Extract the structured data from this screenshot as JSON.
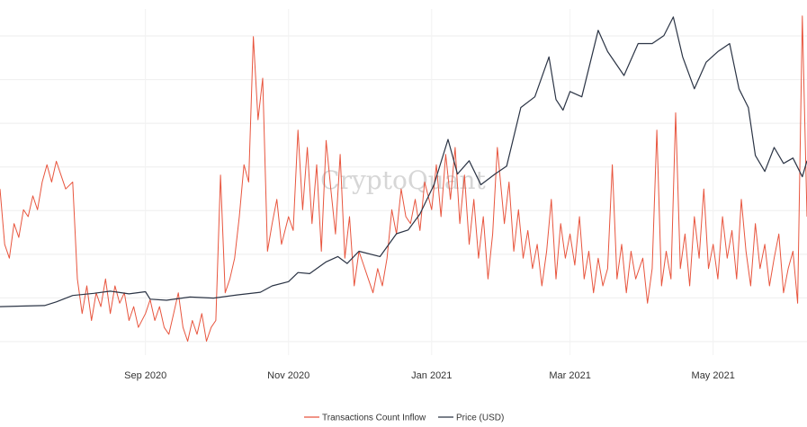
{
  "watermark": "CryptoQuant",
  "chart_data": {
    "type": "line",
    "x_type": "date",
    "xlim": [
      "2020-07-01",
      "2021-06-10"
    ],
    "x_ticks": [
      {
        "date": "2020-09-01",
        "label": "Sep 2020"
      },
      {
        "date": "2020-11-01",
        "label": "Nov 2020"
      },
      {
        "date": "2021-01-01",
        "label": "Jan 2021"
      },
      {
        "date": "2021-03-01",
        "label": "Mar 2021"
      },
      {
        "date": "2021-05-01",
        "label": "May 2021"
      }
    ],
    "grid": true,
    "legend_position": "bottom-center",
    "series": [
      {
        "name": "Transactions Count Inflow",
        "color": "#e8553e",
        "axis": "left",
        "ylim": [
          0,
          100
        ],
        "points": [
          [
            "2020-07-01",
            48
          ],
          [
            "2020-07-03",
            32
          ],
          [
            "2020-07-05",
            28
          ],
          [
            "2020-07-07",
            38
          ],
          [
            "2020-07-09",
            34
          ],
          [
            "2020-07-11",
            42
          ],
          [
            "2020-07-13",
            40
          ],
          [
            "2020-07-15",
            46
          ],
          [
            "2020-07-17",
            42
          ],
          [
            "2020-07-19",
            50
          ],
          [
            "2020-07-21",
            55
          ],
          [
            "2020-07-23",
            50
          ],
          [
            "2020-07-25",
            56
          ],
          [
            "2020-07-27",
            52
          ],
          [
            "2020-07-29",
            48
          ],
          [
            "2020-08-01",
            50
          ],
          [
            "2020-08-03",
            22
          ],
          [
            "2020-08-05",
            12
          ],
          [
            "2020-08-07",
            20
          ],
          [
            "2020-08-09",
            10
          ],
          [
            "2020-08-11",
            18
          ],
          [
            "2020-08-13",
            14
          ],
          [
            "2020-08-15",
            22
          ],
          [
            "2020-08-17",
            12
          ],
          [
            "2020-08-19",
            20
          ],
          [
            "2020-08-21",
            15
          ],
          [
            "2020-08-23",
            18
          ],
          [
            "2020-08-25",
            10
          ],
          [
            "2020-08-27",
            14
          ],
          [
            "2020-08-29",
            8
          ],
          [
            "2020-09-01",
            12
          ],
          [
            "2020-09-03",
            16
          ],
          [
            "2020-09-05",
            10
          ],
          [
            "2020-09-07",
            14
          ],
          [
            "2020-09-09",
            8
          ],
          [
            "2020-09-11",
            6
          ],
          [
            "2020-09-13",
            12
          ],
          [
            "2020-09-15",
            18
          ],
          [
            "2020-09-17",
            8
          ],
          [
            "2020-09-19",
            4
          ],
          [
            "2020-09-21",
            10
          ],
          [
            "2020-09-23",
            6
          ],
          [
            "2020-09-25",
            12
          ],
          [
            "2020-09-27",
            4
          ],
          [
            "2020-09-29",
            8
          ],
          [
            "2020-10-01",
            10
          ],
          [
            "2020-10-03",
            52
          ],
          [
            "2020-10-05",
            18
          ],
          [
            "2020-10-07",
            22
          ],
          [
            "2020-10-09",
            28
          ],
          [
            "2020-10-11",
            40
          ],
          [
            "2020-10-13",
            55
          ],
          [
            "2020-10-15",
            50
          ],
          [
            "2020-10-17",
            92
          ],
          [
            "2020-10-19",
            68
          ],
          [
            "2020-10-21",
            80
          ],
          [
            "2020-10-23",
            30
          ],
          [
            "2020-10-25",
            38
          ],
          [
            "2020-10-27",
            45
          ],
          [
            "2020-10-29",
            32
          ],
          [
            "2020-11-01",
            40
          ],
          [
            "2020-11-03",
            36
          ],
          [
            "2020-11-05",
            65
          ],
          [
            "2020-11-07",
            42
          ],
          [
            "2020-11-09",
            60
          ],
          [
            "2020-11-11",
            38
          ],
          [
            "2020-11-13",
            55
          ],
          [
            "2020-11-15",
            30
          ],
          [
            "2020-11-17",
            62
          ],
          [
            "2020-11-19",
            48
          ],
          [
            "2020-11-21",
            35
          ],
          [
            "2020-11-23",
            58
          ],
          [
            "2020-11-25",
            28
          ],
          [
            "2020-11-27",
            40
          ],
          [
            "2020-11-29",
            20
          ],
          [
            "2020-12-01",
            30
          ],
          [
            "2020-12-03",
            26
          ],
          [
            "2020-12-05",
            22
          ],
          [
            "2020-12-07",
            18
          ],
          [
            "2020-12-09",
            25
          ],
          [
            "2020-12-11",
            20
          ],
          [
            "2020-12-13",
            28
          ],
          [
            "2020-12-15",
            42
          ],
          [
            "2020-12-17",
            35
          ],
          [
            "2020-12-19",
            48
          ],
          [
            "2020-12-21",
            40
          ],
          [
            "2020-12-23",
            38
          ],
          [
            "2020-12-25",
            45
          ],
          [
            "2020-12-27",
            36
          ],
          [
            "2020-12-29",
            50
          ],
          [
            "2021-01-01",
            42
          ],
          [
            "2021-01-03",
            55
          ],
          [
            "2021-01-05",
            40
          ],
          [
            "2021-01-07",
            58
          ],
          [
            "2021-01-09",
            45
          ],
          [
            "2021-01-11",
            60
          ],
          [
            "2021-01-13",
            38
          ],
          [
            "2021-01-15",
            52
          ],
          [
            "2021-01-17",
            32
          ],
          [
            "2021-01-19",
            45
          ],
          [
            "2021-01-21",
            28
          ],
          [
            "2021-01-23",
            40
          ],
          [
            "2021-01-25",
            22
          ],
          [
            "2021-01-27",
            35
          ],
          [
            "2021-01-29",
            60
          ],
          [
            "2021-02-01",
            38
          ],
          [
            "2021-02-03",
            50
          ],
          [
            "2021-02-05",
            30
          ],
          [
            "2021-02-07",
            42
          ],
          [
            "2021-02-09",
            28
          ],
          [
            "2021-02-11",
            36
          ],
          [
            "2021-02-13",
            25
          ],
          [
            "2021-02-15",
            32
          ],
          [
            "2021-02-17",
            20
          ],
          [
            "2021-02-19",
            30
          ],
          [
            "2021-02-21",
            45
          ],
          [
            "2021-02-23",
            22
          ],
          [
            "2021-02-25",
            38
          ],
          [
            "2021-02-27",
            28
          ],
          [
            "2021-03-01",
            35
          ],
          [
            "2021-03-03",
            26
          ],
          [
            "2021-03-05",
            40
          ],
          [
            "2021-03-07",
            22
          ],
          [
            "2021-03-09",
            30
          ],
          [
            "2021-03-11",
            18
          ],
          [
            "2021-03-13",
            28
          ],
          [
            "2021-03-15",
            20
          ],
          [
            "2021-03-17",
            25
          ],
          [
            "2021-03-19",
            55
          ],
          [
            "2021-03-21",
            22
          ],
          [
            "2021-03-23",
            32
          ],
          [
            "2021-03-25",
            18
          ],
          [
            "2021-03-27",
            30
          ],
          [
            "2021-03-29",
            22
          ],
          [
            "2021-04-01",
            28
          ],
          [
            "2021-04-03",
            15
          ],
          [
            "2021-04-05",
            25
          ],
          [
            "2021-04-07",
            65
          ],
          [
            "2021-04-09",
            20
          ],
          [
            "2021-04-11",
            30
          ],
          [
            "2021-04-13",
            22
          ],
          [
            "2021-04-15",
            70
          ],
          [
            "2021-04-17",
            25
          ],
          [
            "2021-04-19",
            35
          ],
          [
            "2021-04-21",
            20
          ],
          [
            "2021-04-23",
            40
          ],
          [
            "2021-04-25",
            28
          ],
          [
            "2021-04-27",
            48
          ],
          [
            "2021-04-29",
            25
          ],
          [
            "2021-05-01",
            32
          ],
          [
            "2021-05-03",
            22
          ],
          [
            "2021-05-05",
            40
          ],
          [
            "2021-05-07",
            28
          ],
          [
            "2021-05-09",
            36
          ],
          [
            "2021-05-11",
            22
          ],
          [
            "2021-05-13",
            45
          ],
          [
            "2021-05-15",
            30
          ],
          [
            "2021-05-17",
            20
          ],
          [
            "2021-05-19",
            38
          ],
          [
            "2021-05-21",
            25
          ],
          [
            "2021-05-23",
            32
          ],
          [
            "2021-05-25",
            20
          ],
          [
            "2021-05-27",
            28
          ],
          [
            "2021-05-29",
            35
          ],
          [
            "2021-05-31",
            18
          ],
          [
            "2021-06-02",
            25
          ],
          [
            "2021-06-04",
            30
          ],
          [
            "2021-06-06",
            15
          ],
          [
            "2021-06-08",
            98
          ],
          [
            "2021-06-10",
            40
          ]
        ]
      },
      {
        "name": "Price (USD)",
        "color": "#2b3445",
        "axis": "right",
        "ylim": [
          0,
          65000
        ],
        "points": [
          [
            "2020-07-01",
            9100
          ],
          [
            "2020-07-10",
            9200
          ],
          [
            "2020-07-20",
            9300
          ],
          [
            "2020-07-25",
            10000
          ],
          [
            "2020-08-01",
            11200
          ],
          [
            "2020-08-10",
            11600
          ],
          [
            "2020-08-17",
            12000
          ],
          [
            "2020-08-25",
            11500
          ],
          [
            "2020-09-01",
            11900
          ],
          [
            "2020-09-03",
            10500
          ],
          [
            "2020-09-10",
            10300
          ],
          [
            "2020-09-20",
            10900
          ],
          [
            "2020-09-30",
            10700
          ],
          [
            "2020-10-10",
            11300
          ],
          [
            "2020-10-20",
            11800
          ],
          [
            "2020-10-25",
            13000
          ],
          [
            "2020-11-01",
            13800
          ],
          [
            "2020-11-05",
            15500
          ],
          [
            "2020-11-10",
            15300
          ],
          [
            "2020-11-17",
            17500
          ],
          [
            "2020-11-22",
            18500
          ],
          [
            "2020-11-26",
            17200
          ],
          [
            "2020-12-01",
            19500
          ],
          [
            "2020-12-10",
            18500
          ],
          [
            "2020-12-17",
            22800
          ],
          [
            "2020-12-22",
            23500
          ],
          [
            "2020-12-27",
            26500
          ],
          [
            "2021-01-02",
            32000
          ],
          [
            "2021-01-08",
            40500
          ],
          [
            "2021-01-12",
            34000
          ],
          [
            "2021-01-17",
            36500
          ],
          [
            "2021-01-22",
            32000
          ],
          [
            "2021-01-28",
            34000
          ],
          [
            "2021-02-02",
            35500
          ],
          [
            "2021-02-08",
            46500
          ],
          [
            "2021-02-14",
            48500
          ],
          [
            "2021-02-20",
            56000
          ],
          [
            "2021-02-23",
            48000
          ],
          [
            "2021-02-26",
            46000
          ],
          [
            "2021-03-01",
            49500
          ],
          [
            "2021-03-06",
            48500
          ],
          [
            "2021-03-13",
            61000
          ],
          [
            "2021-03-17",
            57000
          ],
          [
            "2021-03-24",
            52500
          ],
          [
            "2021-03-30",
            58500
          ],
          [
            "2021-04-05",
            58500
          ],
          [
            "2021-04-10",
            60000
          ],
          [
            "2021-04-14",
            63500
          ],
          [
            "2021-04-18",
            56000
          ],
          [
            "2021-04-23",
            50000
          ],
          [
            "2021-04-28",
            55000
          ],
          [
            "2021-05-03",
            57000
          ],
          [
            "2021-05-08",
            58500
          ],
          [
            "2021-05-12",
            50000
          ],
          [
            "2021-05-16",
            46500
          ],
          [
            "2021-05-19",
            37500
          ],
          [
            "2021-05-23",
            34500
          ],
          [
            "2021-05-27",
            39000
          ],
          [
            "2021-05-31",
            36000
          ],
          [
            "2021-06-04",
            37000
          ],
          [
            "2021-06-08",
            33500
          ],
          [
            "2021-06-10",
            36500
          ]
        ]
      }
    ]
  }
}
